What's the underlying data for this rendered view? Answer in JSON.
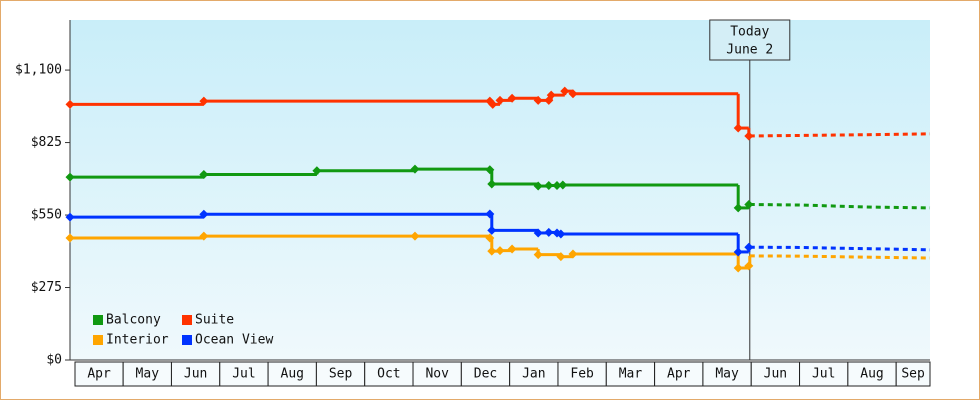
{
  "chart_data": {
    "type": "step",
    "xlim": [
      -0.1,
      17.7
    ],
    "ylim": [
      0,
      1290
    ],
    "yticks": [
      {
        "value": 0,
        "label": "$0"
      },
      {
        "value": 275,
        "label": "$275"
      },
      {
        "value": 550,
        "label": "$550"
      },
      {
        "value": 825,
        "label": "$825"
      },
      {
        "value": 1100,
        "label": "$1,100"
      }
    ],
    "xticks": [
      {
        "value": 0.5,
        "label": "Apr"
      },
      {
        "value": 1.5,
        "label": "May"
      },
      {
        "value": 2.5,
        "label": "Jun"
      },
      {
        "value": 3.5,
        "label": "Jul"
      },
      {
        "value": 4.5,
        "label": "Aug"
      },
      {
        "value": 5.5,
        "label": "Sep"
      },
      {
        "value": 6.5,
        "label": "Oct"
      },
      {
        "value": 7.5,
        "label": "Nov"
      },
      {
        "value": 8.5,
        "label": "Dec"
      },
      {
        "value": 9.5,
        "label": "Jan"
      },
      {
        "value": 10.5,
        "label": "Feb"
      },
      {
        "value": 11.5,
        "label": "Mar"
      },
      {
        "value": 12.5,
        "label": "Apr"
      },
      {
        "value": 13.5,
        "label": "May"
      },
      {
        "value": 14.5,
        "label": "Jun"
      },
      {
        "value": 15.5,
        "label": "Jul"
      },
      {
        "value": 16.5,
        "label": "Aug"
      },
      {
        "value": 17.5,
        "label": "Sep"
      }
    ],
    "annotation": {
      "x": 13.97,
      "lines": [
        "Today",
        "June 2"
      ]
    },
    "series": [
      {
        "name": "Balcony",
        "color": "#119911",
        "x": [
          -0.1,
          2.67,
          5.01,
          7.04,
          8.59,
          8.63,
          9.59,
          9.81,
          9.98,
          10.1,
          13.73,
          13.95
        ],
        "values": [
          694,
          704,
          718,
          724,
          722,
          668,
          660,
          662,
          662,
          664,
          577,
          590
        ],
        "forecast_x": [
          13.97,
          15,
          16.5,
          17.7
        ],
        "forecast_values": [
          590,
          588,
          580,
          577
        ]
      },
      {
        "name": "Suite",
        "color": "#ff3300",
        "x": [
          -0.1,
          2.67,
          8.59,
          8.65,
          8.8,
          9.05,
          9.59,
          9.81,
          9.86,
          10.14,
          10.31,
          13.73,
          13.95
        ],
        "values": [
          970,
          982,
          982,
          970,
          985,
          993,
          985,
          985,
          1005,
          1020,
          1010,
          880,
          850
        ],
        "forecast_x": [
          13.97,
          15,
          16.5,
          17.7
        ],
        "forecast_values": [
          850,
          852,
          855,
          858
        ]
      },
      {
        "name": "Interior",
        "color": "#ffa500",
        "x": [
          -0.1,
          2.67,
          7.04,
          8.59,
          8.63,
          8.8,
          9.05,
          9.59,
          10.06,
          10.31,
          13.73,
          13.95
        ],
        "values": [
          463,
          470,
          470,
          463,
          413,
          415,
          421,
          400,
          392,
          402,
          349,
          357
        ],
        "forecast_x": [
          13.97,
          15,
          16.5,
          17.7
        ],
        "forecast_values": [
          395,
          394,
          390,
          387
        ]
      },
      {
        "name": "Ocean View",
        "color": "#0033ff",
        "x": [
          -0.1,
          2.67,
          8.59,
          8.63,
          9.59,
          9.81,
          9.98,
          10.06,
          13.73,
          13.95
        ],
        "values": [
          542,
          553,
          554,
          492,
          482,
          484,
          482,
          478,
          410,
          428
        ],
        "forecast_x": [
          13.97,
          15,
          16.5,
          17.7
        ],
        "forecast_values": [
          428,
          427,
          422,
          418
        ]
      }
    ]
  }
}
